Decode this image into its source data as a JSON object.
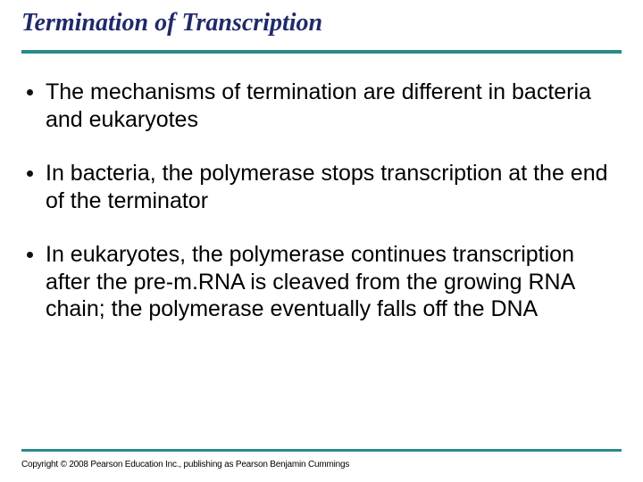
{
  "title": "Termination of Transcription",
  "bullets": [
    "The mechanisms of termination are different in bacteria and eukaryotes",
    "In bacteria, the polymerase stops transcription at the end of the terminator",
    "In eukaryotes, the polymerase continues transcription after the pre-m.RNA is cleaved from the growing RNA chain; the polymerase eventually falls off the DNA"
  ],
  "copyright": "Copyright © 2008 Pearson Education Inc., publishing as Pearson Benjamin Cummings",
  "colors": {
    "title_color": "#1f2a6b",
    "divider_color": "#2a8a8a",
    "text_color": "#000000",
    "background": "#ffffff"
  },
  "typography": {
    "title_font": "Times New Roman",
    "title_style": "italic bold",
    "title_fontsize": 28,
    "body_font": "Arial",
    "body_fontsize": 25,
    "copyright_fontsize": 10
  }
}
